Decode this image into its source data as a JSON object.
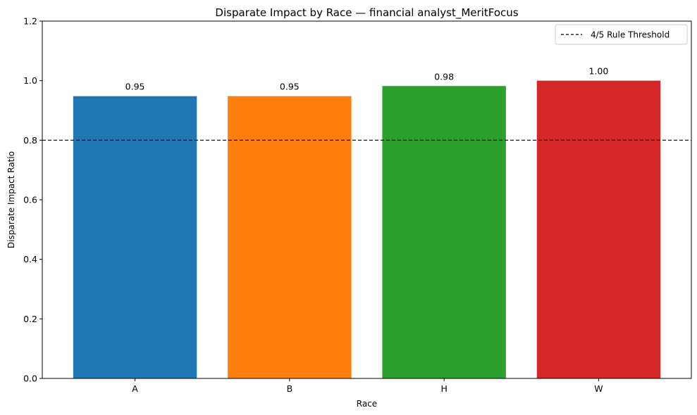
{
  "chart_data": {
    "type": "bar",
    "title": "Disparate Impact by Race — financial analyst_MeritFocus",
    "xlabel": "Race",
    "ylabel": "Disparate Impact Ratio",
    "categories": [
      "A",
      "B",
      "H",
      "W"
    ],
    "values": [
      0.948,
      0.948,
      0.982,
      1.0
    ],
    "value_labels": [
      "0.95",
      "0.95",
      "0.98",
      "1.00"
    ],
    "colors": [
      "#1f77b4",
      "#ff7f0e",
      "#2ca02c",
      "#d62728"
    ],
    "ylim": [
      0,
      1.2
    ],
    "yticks": [
      0.0,
      0.2,
      0.4,
      0.6,
      0.8,
      1.0,
      1.2
    ],
    "ytick_labels": [
      "0.0",
      "0.2",
      "0.4",
      "0.6",
      "0.8",
      "1.0",
      "1.2"
    ],
    "threshold": {
      "value": 0.8,
      "label": "4/5 Rule Threshold",
      "style": "dashed",
      "color": "#000000"
    },
    "legend": {
      "placement": "top-right"
    },
    "grid": false
  }
}
